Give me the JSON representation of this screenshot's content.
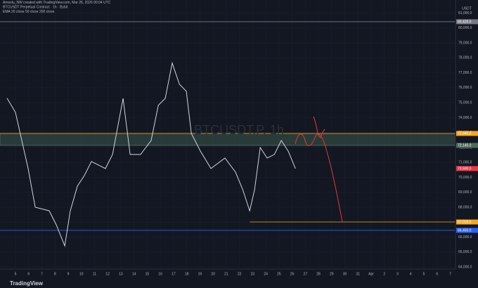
{
  "chart_data": {
    "type": "line",
    "title": "Amsolu_NW created with TradingView.com, Mar 26, 2026 00:04 UTC",
    "subtitle": "BTCUSDT Perpetual Contract · 1h · Bybit",
    "indicator_label": "EMA 20 close 50 close 200 close",
    "currency": "USDT",
    "footer": "TradingView",
    "series": [
      {
        "name": "BTCUSDT.P, 1h",
        "color": "#d1d4dc",
        "x": [
          4.36,
          5,
          5.96,
          6.5,
          7.56,
          8.1,
          8.74,
          9.16,
          9.7,
          10.23,
          10.77,
          11.83,
          12.37,
          13.17,
          13.7,
          14.5,
          15.3,
          15.84,
          16.37,
          16.9,
          17.44,
          17.97,
          18.35,
          19.04,
          19.84,
          20.9,
          21.7,
          22.25,
          22.78,
          23.15,
          23.58,
          24.1,
          24.65,
          25.18,
          25.7,
          26.25
        ],
        "values": [
          75300,
          74350,
          70590,
          68000,
          67760,
          66820,
          65410,
          67760,
          69410,
          70120,
          71060,
          70590,
          71530,
          75290,
          71530,
          71530,
          72470,
          74820,
          75290,
          77650,
          76240,
          75760,
          72940,
          71760,
          70590,
          71290,
          70350,
          69180,
          67760,
          69180,
          72000,
          71290,
          71530,
          72470,
          71760,
          70590
        ]
      }
    ],
    "last_price": 70590,
    "last_price_label": "70,590.0",
    "zone": [
      72140,
      72940
    ],
    "levels": [
      {
        "value": 72940,
        "label": "72,940.0",
        "color": "#f5a623"
      },
      {
        "value": 72140,
        "label": "72,140.0",
        "color": "#4c6a5a"
      },
      {
        "value": 67010,
        "label": "67,010.0",
        "color": "#f5a623"
      },
      {
        "value": 66450,
        "label": "66,450.0",
        "color": "#2962ff"
      },
      {
        "value": 80420,
        "label": "80,420.0",
        "color": "#787b86"
      }
    ],
    "xlim": [
      4.2,
      38.4
    ],
    "xticks": [
      {
        "value": 5,
        "label": "5"
      },
      {
        "value": 6,
        "label": "6"
      },
      {
        "value": 7,
        "label": "7"
      },
      {
        "value": 8,
        "label": "8"
      },
      {
        "value": 9,
        "label": "9"
      },
      10,
      11,
      12,
      13,
      14,
      15,
      16,
      17,
      18,
      19,
      20,
      21,
      22,
      23,
      24,
      25,
      26,
      27,
      28,
      29,
      30,
      31,
      {
        "value": 32,
        "label": "Apr"
      },
      {
        "value": 33,
        "label": "2"
      },
      {
        "value": 34,
        "label": "3"
      },
      {
        "value": 35,
        "label": "4"
      },
      {
        "value": 36,
        "label": "5"
      },
      {
        "value": 37,
        "label": "6"
      },
      {
        "value": 38,
        "label": "7"
      }
    ],
    "ylim": [
      63860,
      81500
    ],
    "yticks": [
      {
        "value": 64000,
        "label": "64,000.0"
      },
      {
        "value": 65000,
        "label": "65,000.0"
      },
      {
        "value": 66000,
        "label": "66,000.0"
      },
      {
        "value": 67000,
        "label": "67,000.0"
      },
      {
        "value": 68000,
        "label": "68,000.0"
      },
      {
        "value": 69000,
        "label": "69,000.0"
      },
      {
        "value": 70000,
        "label": "70,000.0"
      },
      {
        "value": 71000,
        "label": "71,000.0"
      },
      {
        "value": 72000,
        "label": "72,000.0"
      },
      {
        "value": 73000,
        "label": "73,000.0"
      },
      {
        "value": 74000,
        "label": "74,000.0"
      },
      {
        "value": 75000,
        "label": "75,000.0"
      },
      {
        "value": 76000,
        "label": "76,000.0"
      },
      {
        "value": 77000,
        "label": "77,000.0"
      },
      {
        "value": 78000,
        "label": "78,000.0"
      },
      {
        "value": 79000,
        "label": "79,000.0"
      },
      {
        "value": 80000,
        "label": "80,000.0"
      },
      {
        "value": 81000,
        "label": "81,000.0"
      }
    ],
    "grid": true
  }
}
